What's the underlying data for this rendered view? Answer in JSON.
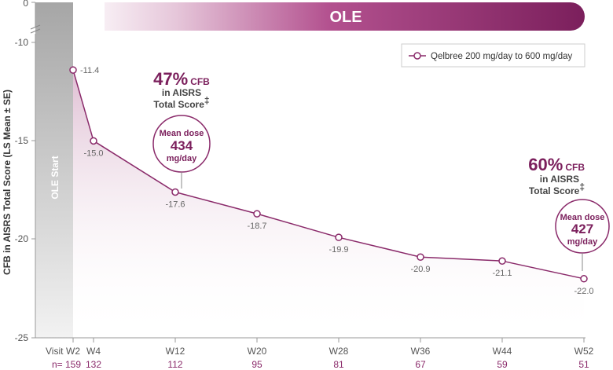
{
  "chart_data": {
    "type": "line",
    "ylabel": "CFB in AISRS Total Score (LS Mean ± SE)",
    "ylim": [
      -25,
      0
    ],
    "yticks": [
      "0",
      "-10",
      "-15",
      "-20",
      "-25"
    ],
    "axis_break": true,
    "phase_banner": "OLE",
    "start_marker": "OLE Start",
    "categories": [
      "W2",
      "W4",
      "W12",
      "W20",
      "W28",
      "W36",
      "W44",
      "W52"
    ],
    "x_weeks": [
      2,
      4,
      12,
      20,
      28,
      36,
      44,
      52
    ],
    "visit_label": "Visit",
    "n_label": "n=",
    "n": [
      "159",
      "132",
      "112",
      "95",
      "81",
      "67",
      "59",
      "51"
    ],
    "series": [
      {
        "name": "Qelbree 200 mg/day to 600 mg/day",
        "values": [
          -11.4,
          -15.0,
          -17.6,
          -18.7,
          -19.9,
          -20.9,
          -21.1,
          -22.0
        ],
        "labels": [
          "-11.4",
          "-15.0",
          "-17.6",
          "-18.7",
          "-19.9",
          "-20.9",
          "-21.1",
          "-22.0"
        ]
      }
    ],
    "legend_position": "top-right",
    "annotations": [
      {
        "at": "W12",
        "percent": "47%",
        "percent_suffix": "CFB",
        "line1": "in AISRS",
        "line2": "Total Score",
        "footnote": "‡",
        "dose_label": "Mean dose",
        "dose_value": "434",
        "dose_unit": "mg/day"
      },
      {
        "at": "W52",
        "percent": "60%",
        "percent_suffix": "CFB",
        "line1": "in AISRS",
        "line2": "Total Score",
        "footnote": "‡",
        "dose_label": "Mean dose",
        "dose_value": "427",
        "dose_unit": "mg/day"
      }
    ],
    "colors": {
      "series": "#8a2a6a",
      "banner_dark": "#7b1f5c",
      "start_bar": "#a8a8a8"
    }
  }
}
